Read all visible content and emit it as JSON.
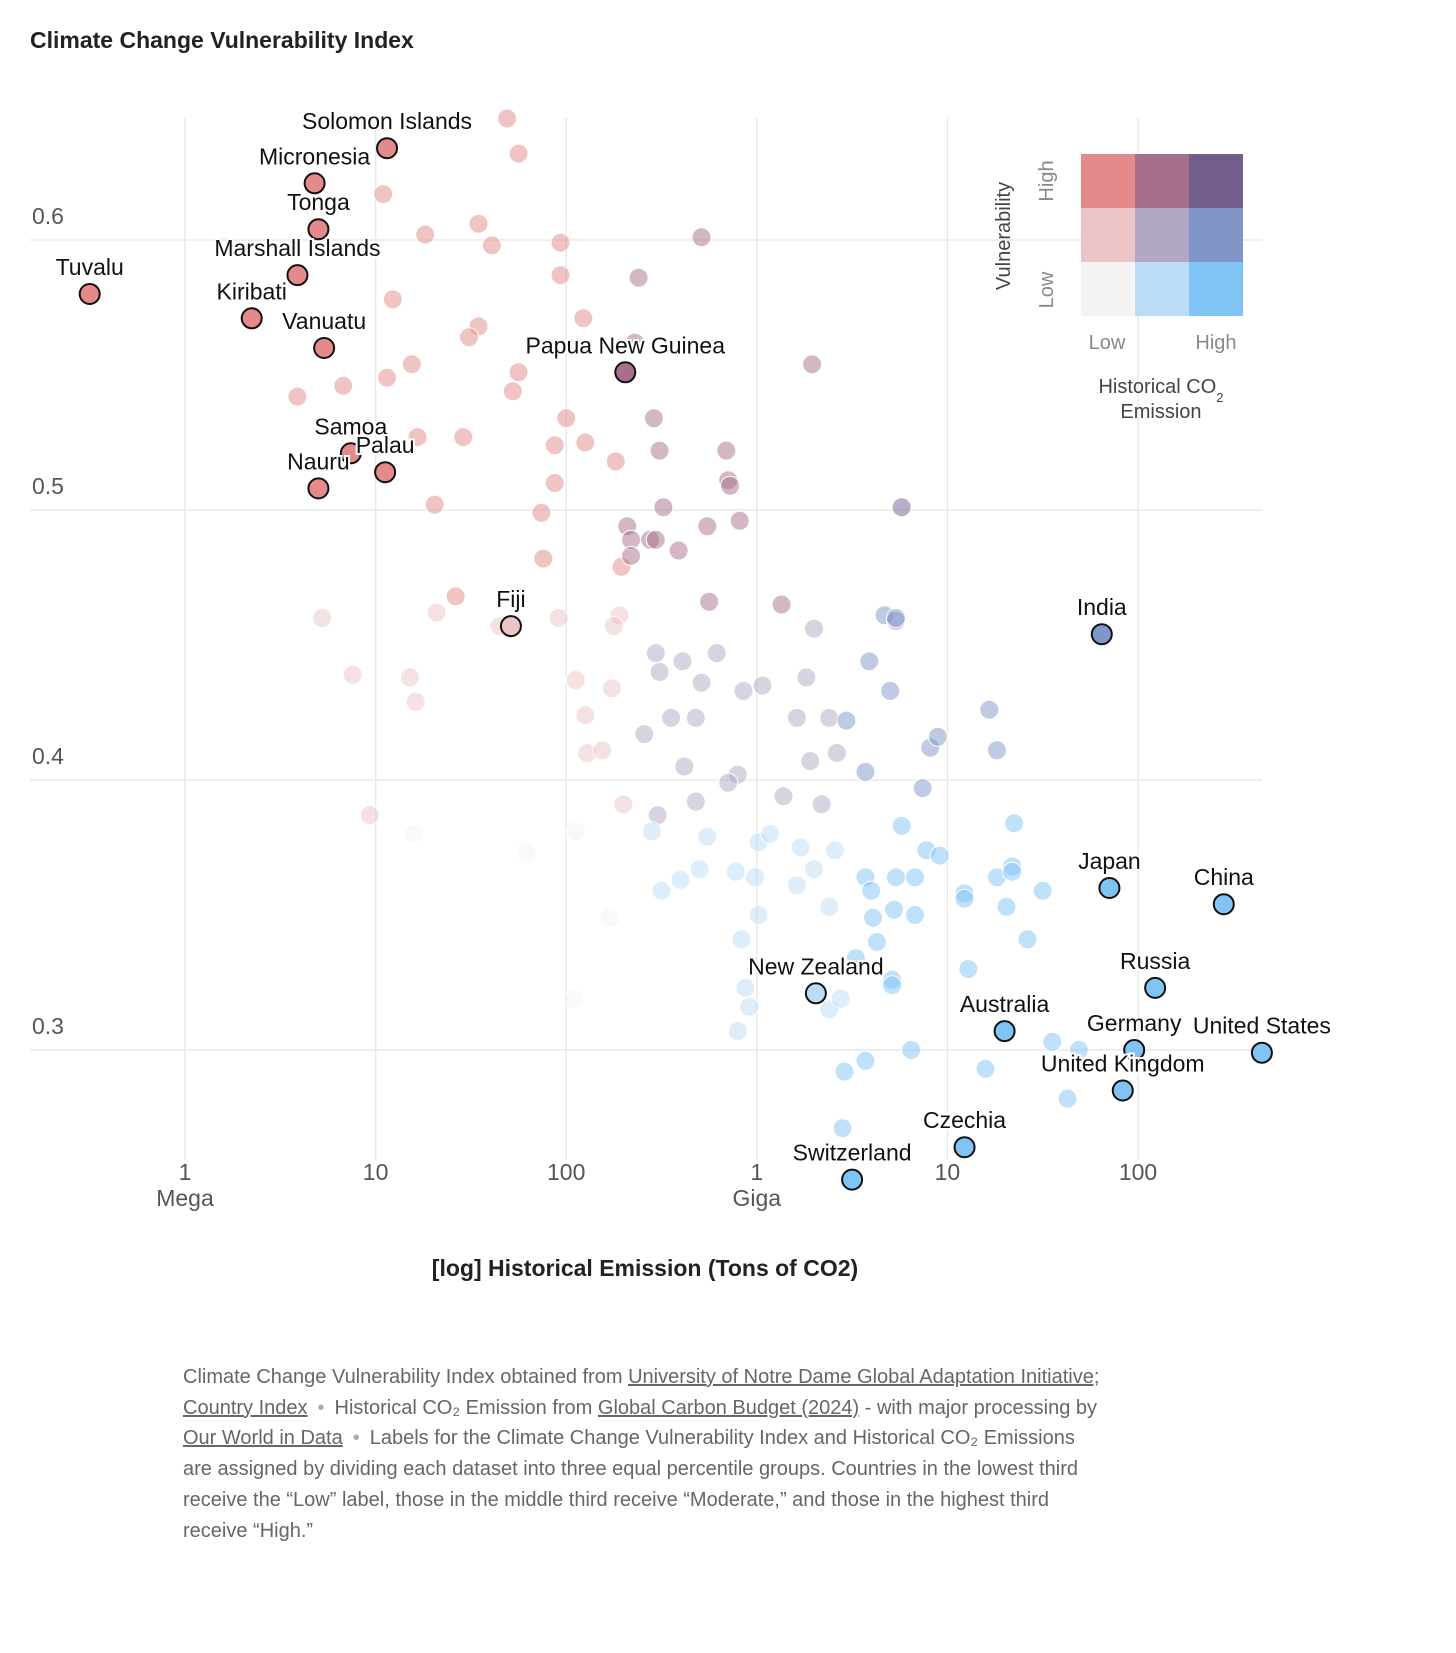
{
  "chart_data": {
    "type": "scatter",
    "title": "Climate Change Vulnerability Index",
    "xlabel": "[log] Historical Emission (Tons of CO2)",
    "x_scale": "log10",
    "x_units": "log10 tons",
    "xlim": [
      5.4,
      11.7
    ],
    "ylim": [
      0.25,
      0.645
    ],
    "grid": true,
    "x_ticks": [
      {
        "value": 6,
        "label": "1",
        "sub": "Mega"
      },
      {
        "value": 7,
        "label": "10",
        "sub": ""
      },
      {
        "value": 8,
        "label": "100",
        "sub": ""
      },
      {
        "value": 9,
        "label": "1",
        "sub": "Giga"
      },
      {
        "value": 10,
        "label": "10",
        "sub": ""
      },
      {
        "value": 11,
        "label": "100",
        "sub": ""
      }
    ],
    "y_ticks": [
      {
        "value": 0.6,
        "label": "0.6"
      },
      {
        "value": 0.5,
        "label": "0.5"
      },
      {
        "value": 0.4,
        "label": "0.4"
      },
      {
        "value": 0.3,
        "label": "0.3"
      }
    ],
    "labeled_points": [
      {
        "name": "Tuvalu",
        "x": 5.5,
        "y": 0.58,
        "cls": "HL"
      },
      {
        "name": "Solomon Islands",
        "x": 7.06,
        "y": 0.634,
        "cls": "HL"
      },
      {
        "name": "Micronesia",
        "x": 6.68,
        "y": 0.621,
        "cls": "HL"
      },
      {
        "name": "Tonga",
        "x": 6.7,
        "y": 0.604,
        "cls": "HL"
      },
      {
        "name": "Marshall Islands",
        "x": 6.59,
        "y": 0.587,
        "cls": "HL"
      },
      {
        "name": "Kiribati",
        "x": 6.35,
        "y": 0.571,
        "cls": "HL"
      },
      {
        "name": "Vanuatu",
        "x": 6.73,
        "y": 0.56,
        "cls": "HL"
      },
      {
        "name": "Papua New Guinea",
        "x": 8.31,
        "y": 0.551,
        "cls": "HM"
      },
      {
        "name": "Samoa",
        "x": 6.87,
        "y": 0.521,
        "cls": "HL"
      },
      {
        "name": "Palau",
        "x": 7.05,
        "y": 0.514,
        "cls": "HL"
      },
      {
        "name": "Nauru",
        "x": 6.7,
        "y": 0.508,
        "cls": "HL"
      },
      {
        "name": "Fiji",
        "x": 7.71,
        "y": 0.457,
        "cls": "ML"
      },
      {
        "name": "India",
        "x": 10.81,
        "y": 0.454,
        "cls": "MH"
      },
      {
        "name": "Japan",
        "x": 10.85,
        "y": 0.36,
        "cls": "LH"
      },
      {
        "name": "China",
        "x": 11.45,
        "y": 0.354,
        "cls": "LH"
      },
      {
        "name": "Russia",
        "x": 11.09,
        "y": 0.323,
        "cls": "LH"
      },
      {
        "name": "New Zealand",
        "x": 9.31,
        "y": 0.321,
        "cls": "LM"
      },
      {
        "name": "Australia",
        "x": 10.3,
        "y": 0.307,
        "cls": "LH"
      },
      {
        "name": "Germany",
        "x": 10.98,
        "y": 0.3,
        "cls": "LH"
      },
      {
        "name": "United States",
        "x": 11.65,
        "y": 0.299,
        "cls": "LH"
      },
      {
        "name": "United Kingdom",
        "x": 10.92,
        "y": 0.285,
        "cls": "LH"
      },
      {
        "name": "Czechia",
        "x": 10.09,
        "y": 0.264,
        "cls": "LH"
      },
      {
        "name": "Switzerland",
        "x": 9.5,
        "y": 0.252,
        "cls": "LH"
      }
    ],
    "other_points": [
      [
        7.69,
        0.645
      ],
      [
        7.75,
        0.632
      ],
      [
        7.04,
        0.617
      ],
      [
        7.54,
        0.606
      ],
      [
        7.26,
        0.602
      ],
      [
        7.61,
        0.598
      ],
      [
        7.97,
        0.599
      ],
      [
        7.97,
        0.587
      ],
      [
        7.09,
        0.578
      ],
      [
        8.09,
        0.571
      ],
      [
        7.54,
        0.568
      ],
      [
        7.49,
        0.564
      ],
      [
        7.19,
        0.554
      ],
      [
        7.75,
        0.551
      ],
      [
        6.83,
        0.546
      ],
      [
        7.06,
        0.549
      ],
      [
        6.59,
        0.542
      ],
      [
        7.72,
        0.544
      ],
      [
        8.0,
        0.534
      ],
      [
        7.22,
        0.527
      ],
      [
        7.46,
        0.527
      ],
      [
        7.94,
        0.524
      ],
      [
        8.1,
        0.525
      ],
      [
        8.26,
        0.518
      ],
      [
        7.94,
        0.51
      ],
      [
        7.31,
        0.502
      ],
      [
        7.87,
        0.499
      ],
      [
        7.88,
        0.482
      ],
      [
        7.42,
        0.468
      ],
      [
        8.29,
        0.479
      ],
      [
        7.32,
        0.462
      ],
      [
        6.72,
        0.46
      ],
      [
        8.28,
        0.461
      ],
      [
        8.25,
        0.457
      ],
      [
        7.96,
        0.46
      ],
      [
        7.65,
        0.457
      ],
      [
        6.88,
        0.439
      ],
      [
        7.18,
        0.438
      ],
      [
        7.21,
        0.429
      ],
      [
        8.05,
        0.437
      ],
      [
        8.24,
        0.434
      ],
      [
        8.1,
        0.424
      ],
      [
        8.11,
        0.41
      ],
      [
        8.19,
        0.411
      ],
      [
        6.97,
        0.387
      ],
      [
        7.2,
        0.38
      ],
      [
        8.05,
        0.381
      ],
      [
        7.79,
        0.373
      ],
      [
        8.23,
        0.349
      ],
      [
        8.04,
        0.319
      ],
      [
        8.71,
        0.601
      ],
      [
        8.38,
        0.586
      ],
      [
        9.29,
        0.554
      ],
      [
        8.36,
        0.562
      ],
      [
        8.46,
        0.534
      ],
      [
        8.49,
        0.522
      ],
      [
        8.84,
        0.522
      ],
      [
        8.85,
        0.511
      ],
      [
        8.86,
        0.509
      ],
      [
        8.51,
        0.501
      ],
      [
        8.32,
        0.494
      ],
      [
        8.74,
        0.494
      ],
      [
        8.91,
        0.496
      ],
      [
        8.34,
        0.489
      ],
      [
        8.44,
        0.489
      ],
      [
        8.47,
        0.489
      ],
      [
        8.59,
        0.485
      ],
      [
        8.34,
        0.483
      ],
      [
        9.76,
        0.501
      ],
      [
        8.75,
        0.466
      ],
      [
        9.13,
        0.465
      ],
      [
        8.47,
        0.447
      ],
      [
        8.79,
        0.447
      ],
      [
        8.61,
        0.444
      ],
      [
        9.3,
        0.456
      ],
      [
        9.67,
        0.461
      ],
      [
        9.73,
        0.459
      ],
      [
        9.73,
        0.46
      ],
      [
        9.59,
        0.444
      ],
      [
        8.49,
        0.44
      ],
      [
        8.71,
        0.436
      ],
      [
        8.93,
        0.433
      ],
      [
        9.03,
        0.435
      ],
      [
        9.26,
        0.438
      ],
      [
        9.7,
        0.433
      ],
      [
        8.41,
        0.417
      ],
      [
        8.55,
        0.423
      ],
      [
        8.68,
        0.423
      ],
      [
        9.21,
        0.423
      ],
      [
        9.38,
        0.423
      ],
      [
        9.47,
        0.422
      ],
      [
        8.62,
        0.405
      ],
      [
        9.28,
        0.407
      ],
      [
        9.42,
        0.41
      ],
      [
        9.57,
        0.403
      ],
      [
        9.91,
        0.412
      ],
      [
        9.95,
        0.416
      ],
      [
        10.22,
        0.426
      ],
      [
        10.26,
        0.411
      ],
      [
        8.3,
        0.391
      ],
      [
        8.48,
        0.387
      ],
      [
        8.68,
        0.392
      ],
      [
        8.9,
        0.402
      ],
      [
        8.85,
        0.399
      ],
      [
        9.14,
        0.394
      ],
      [
        9.34,
        0.391
      ],
      [
        9.87,
        0.397
      ],
      [
        8.45,
        0.381
      ],
      [
        8.74,
        0.379
      ],
      [
        9.01,
        0.377
      ],
      [
        9.07,
        0.38
      ],
      [
        9.23,
        0.375
      ],
      [
        9.76,
        0.383
      ],
      [
        10.35,
        0.384
      ],
      [
        8.5,
        0.359
      ],
      [
        8.6,
        0.363
      ],
      [
        8.7,
        0.367
      ],
      [
        8.89,
        0.366
      ],
      [
        8.99,
        0.364
      ],
      [
        9.21,
        0.361
      ],
      [
        9.3,
        0.367
      ],
      [
        9.41,
        0.374
      ],
      [
        9.01,
        0.35
      ],
      [
        8.92,
        0.341
      ],
      [
        9.38,
        0.353
      ],
      [
        9.57,
        0.364
      ],
      [
        9.6,
        0.359
      ],
      [
        9.61,
        0.349
      ],
      [
        9.63,
        0.34
      ],
      [
        9.73,
        0.364
      ],
      [
        9.83,
        0.364
      ],
      [
        9.89,
        0.374
      ],
      [
        9.96,
        0.372
      ],
      [
        9.72,
        0.352
      ],
      [
        9.83,
        0.35
      ],
      [
        10.09,
        0.358
      ],
      [
        10.09,
        0.356
      ],
      [
        10.26,
        0.364
      ],
      [
        10.34,
        0.368
      ],
      [
        10.34,
        0.366
      ],
      [
        10.31,
        0.353
      ],
      [
        10.5,
        0.359
      ],
      [
        10.42,
        0.341
      ],
      [
        9.52,
        0.334
      ],
      [
        10.11,
        0.33
      ],
      [
        8.94,
        0.323
      ],
      [
        8.96,
        0.316
      ],
      [
        9.38,
        0.315
      ],
      [
        9.44,
        0.319
      ],
      [
        9.71,
        0.326
      ],
      [
        9.71,
        0.324
      ],
      [
        8.9,
        0.307
      ],
      [
        10.55,
        0.303
      ],
      [
        10.69,
        0.3
      ],
      [
        9.81,
        0.3
      ],
      [
        9.57,
        0.296
      ],
      [
        9.46,
        0.292
      ],
      [
        10.2,
        0.293
      ],
      [
        10.63,
        0.282
      ],
      [
        9.45,
        0.271
      ]
    ],
    "palette": {
      "HL": "#e48a8a",
      "HM": "#a86f8a",
      "HH": "#735d8c",
      "ML": "#ecc3c6",
      "MM": "#b2a7c4",
      "MH": "#7f96c7",
      "LL": "#f3f3f3",
      "LM": "#bcdcf5",
      "LH": "#80c4f5"
    },
    "legend": {
      "placement": "top-right",
      "y_title": "Vulnerability",
      "y_high": "High",
      "y_low": "Low",
      "x_low": "Low",
      "x_high": "High",
      "x_title_line1": "Historical CO",
      "x_title_sub": "2",
      "x_title_line2": "Emission"
    }
  },
  "footer": {
    "s1": "Climate Change Vulnerability Index obtained from ",
    "link1": "University of Notre Dame Global Adaptation Initiative; Country Index",
    "s2": "Historical CO₂ Emission from ",
    "link2": "Global Carbon Budget (2024)",
    "s3": " - with major processing by ",
    "link3": "Our World in Data",
    "s4": "Labels for the Climate Change Vulnerability Index and Historical CO₂ Emissions are assigned by dividing each dataset into three equal percentile groups. Countries in the lowest third receive the “Low” label, those in the middle third receive “Moderate,” and those in the highest third receive “High.”",
    "separator": "•"
  }
}
